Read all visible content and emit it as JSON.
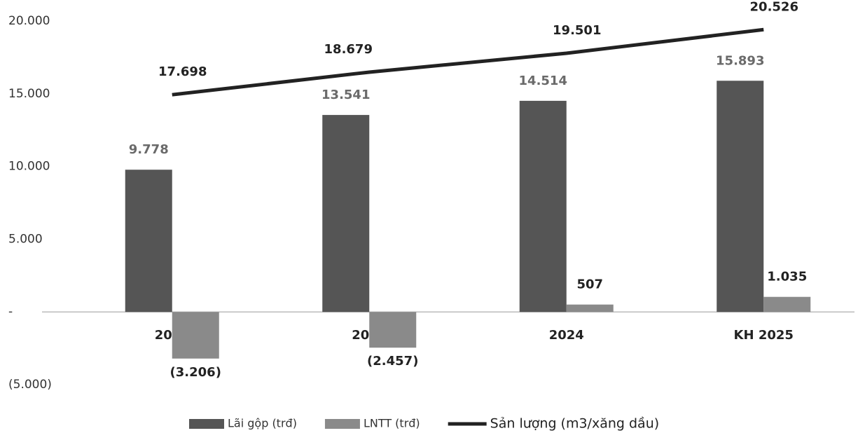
{
  "chart_data": {
    "type": "bar-line",
    "categories": [
      "2022",
      "2023",
      "2024",
      "KH 2025"
    ],
    "series": [
      {
        "name": "Lãi gộp (trđ)",
        "type": "bar",
        "color": "#555555",
        "values": [
          9778,
          13541,
          14514,
          15893
        ],
        "value_labels": [
          "9.778",
          "13.541",
          "14.514",
          "15.893"
        ]
      },
      {
        "name": "LNTT (trđ)",
        "type": "bar",
        "color": "#8a8a8a",
        "values": [
          -3206,
          -2457,
          507,
          1035
        ],
        "value_labels": [
          "(3.206)",
          "(2.457)",
          "507",
          "1.035"
        ]
      },
      {
        "name": "Sản lượng (m3/xăng dầu)",
        "type": "line",
        "axis": "y2",
        "color": "#222222",
        "values": [
          17698,
          18679,
          19501,
          20526
        ],
        "value_labels": [
          "17.698",
          "18.679",
          "19.501",
          "20.526"
        ]
      }
    ],
    "ylim": [
      -5000,
      20000
    ],
    "yticks": [
      {
        "value": -5000,
        "label": "(5.000)"
      },
      {
        "value": 0,
        "label": "-"
      },
      {
        "value": 5000,
        "label": "5.000"
      },
      {
        "value": 10000,
        "label": "10.000"
      },
      {
        "value": 15000,
        "label": "15.000"
      },
      {
        "value": 20000,
        "label": "20.000"
      }
    ],
    "y2lim": [
      5100,
      20900
    ]
  }
}
